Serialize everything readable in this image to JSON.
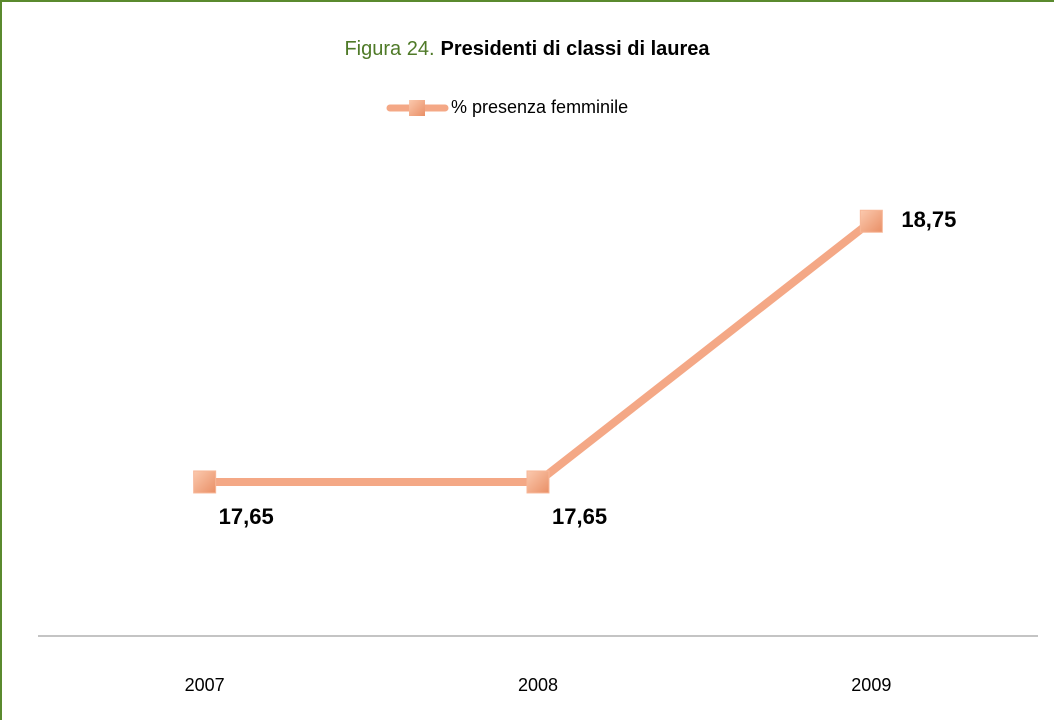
{
  "chart_data": {
    "type": "line",
    "title_prefix": "Figura 24.",
    "title": "Presidenti di classi di laurea",
    "categories": [
      "2007",
      "2008",
      "2009"
    ],
    "series": [
      {
        "name": "% presenza femminile",
        "color": "#f4a886",
        "values": [
          17.65,
          17.65,
          18.75
        ],
        "value_labels": [
          "17,65",
          "17,65",
          "18,75"
        ]
      }
    ],
    "ylim": [
      17,
      19
    ],
    "legend": "top"
  }
}
